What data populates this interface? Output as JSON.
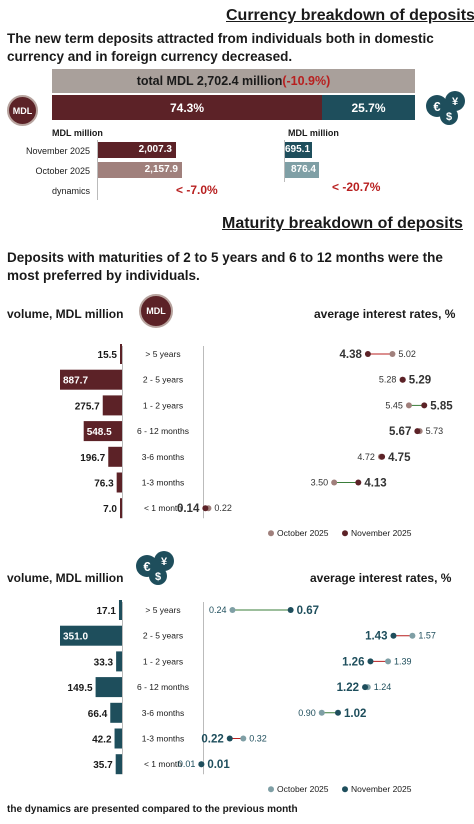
{
  "colors": {
    "mdl_dark": "#5c2227",
    "mdl_light": "#a0807c",
    "fx_dark": "#1e4e5c",
    "fx_light": "#7f9fa5",
    "total_bar": "#a9a09b",
    "negative": "#b81f1f",
    "divider": "#bbbbbb"
  },
  "currency": {
    "title": "Currency breakdown of deposits",
    "lead": "The new term deposits attracted from individuals both in domestic currency and in foreign currency decreased.",
    "total_label": "total MDL 2,702.4 million",
    "total_change": "(-10.9%)",
    "mdl_icon": "MDL",
    "fx_icon": "fx-coins-icon",
    "mdl_share": "74.3%",
    "fx_share": "25.7%",
    "unit_left": "MDL million",
    "unit_right": "MDL million",
    "row_labels": [
      "November 2025",
      "October 2025",
      "dynamics"
    ],
    "mdl_values": [
      "2,007.3",
      "2,157.9"
    ],
    "fx_values": [
      "695.1",
      "876.4"
    ],
    "mdl_dynamics": "-7.0%",
    "fx_dynamics": "-20.7%"
  },
  "maturity": {
    "title": "Maturity breakdown of deposits",
    "lead": "Deposits with maturities of 2 to 5 years and 6 to 12 months were the most preferred by individuals.",
    "volume_label": "volume, MDL million",
    "rates_label": "average interest rates, %",
    "legend_oct": "October 2025",
    "legend_nov": "November 2025",
    "footer": "the dynamics are presented compared to the previous month"
  },
  "chart_data": [
    {
      "type": "bar",
      "title": "",
      "ylabel": "volume, MDL million",
      "categories": [
        "> 5 years",
        "2 - 5 years",
        "1 - 2 years",
        "6 - 12 months",
        "3-6 months",
        "1-3 months",
        "< 1 month"
      ],
      "values": [
        15.5,
        887.7,
        275.7,
        548.5,
        196.7,
        76.3,
        7.0
      ],
      "value_labels": [
        "15.5",
        "887.7",
        "275.7",
        "548.5",
        "196.7",
        "76.3",
        "7.0"
      ],
      "currency": "MDL"
    },
    {
      "type": "scatter",
      "ylabel": "average interest rates, %",
      "categories": [
        "> 5 years",
        "2 - 5 years",
        "1 - 2 years",
        "6 - 12 months",
        "3-6 months",
        "1-3 months",
        "< 1 month"
      ],
      "series": [
        {
          "name": "October 2025",
          "values": [
            5.02,
            5.28,
            5.45,
            5.73,
            4.72,
            3.5,
            0.22
          ],
          "labels": [
            "5.02",
            "5.28",
            "5.45",
            "5.73",
            "4.72",
            "3.50",
            "0.22"
          ]
        },
        {
          "name": "November 2025",
          "values": [
            4.38,
            5.29,
            5.85,
            5.67,
            4.75,
            4.13,
            0.14
          ],
          "labels": [
            "4.38",
            "5.29",
            "5.85",
            "5.67",
            "4.75",
            "4.13",
            "0.14"
          ]
        }
      ],
      "xlim": [
        0,
        6
      ]
    },
    {
      "type": "bar",
      "ylabel": "volume, MDL million",
      "categories": [
        "> 5 years",
        "2 - 5 years",
        "1 - 2 years",
        "6 - 12 months",
        "3-6 months",
        "1-3 months",
        "< 1 month"
      ],
      "values": [
        17.1,
        351.0,
        33.3,
        149.5,
        66.4,
        42.2,
        35.7
      ],
      "value_labels": [
        "17.1",
        "351.0",
        "33.3",
        "149.5",
        "66.4",
        "42.2",
        "35.7"
      ],
      "currency": "foreign currency"
    },
    {
      "type": "scatter",
      "ylabel": "average interest rates, %",
      "categories": [
        "> 5 years",
        "2 - 5 years",
        "1 - 2 years",
        "6 - 12 months",
        "3-6 months",
        "1-3 months",
        "< 1 month"
      ],
      "series": [
        {
          "name": "October 2025",
          "values": [
            0.24,
            1.57,
            1.39,
            1.24,
            0.9,
            0.32,
            0.01
          ],
          "labels": [
            "0.24",
            "1.57",
            "1.39",
            "1.24",
            "0.90",
            "0.32",
            "0.01"
          ]
        },
        {
          "name": "November 2025",
          "values": [
            0.67,
            1.43,
            1.26,
            1.22,
            1.02,
            0.22,
            0.01
          ],
          "labels": [
            "0.67",
            "1.43",
            "1.26",
            "1.22",
            "1.02",
            "0.22",
            "0.01"
          ]
        }
      ],
      "xlim": [
        0,
        1.7
      ]
    }
  ]
}
